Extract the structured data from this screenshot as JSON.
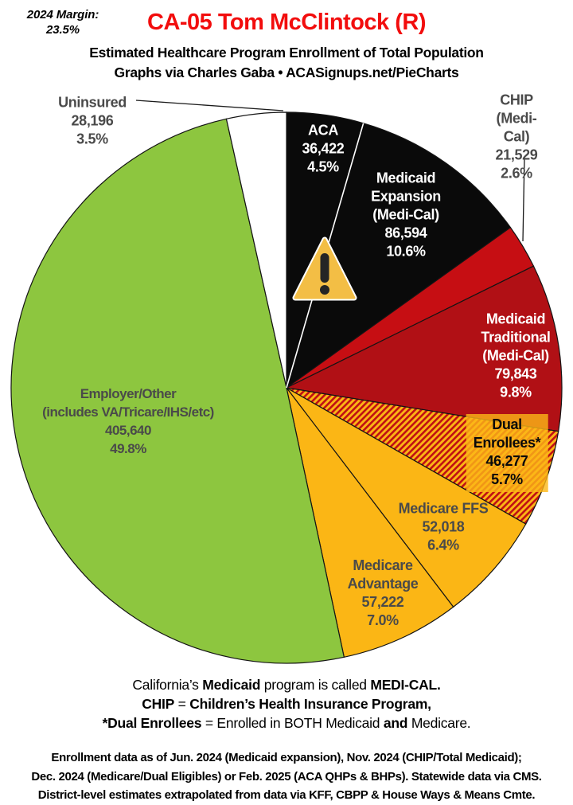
{
  "header": {
    "margin_note": "2024 Margin:\n23.5%",
    "title": "CA-05 Tom McClintock (R)",
    "title_color": "#f20d0d",
    "subtitle": "Estimated Healthcare Program Enrollment of Total Population",
    "byline": "Graphs via Charles Gaba  •  ACASignups.net/PieCharts"
  },
  "chart_data": {
    "type": "pie",
    "title": "Estimated Healthcare Program Enrollment of Total Population — CA-05",
    "start_angle_deg": 0,
    "direction": "clockwise",
    "legend_position": "labels-on-slices",
    "annotation_icon": "warning-triangle",
    "hatch_colors": {
      "base": "#fbb615",
      "stripe": "#c00f14"
    },
    "slices": [
      {
        "id": "aca",
        "name": "ACA",
        "value": 36422,
        "value_display": "36,422",
        "pct": 4.5,
        "pct_display": "4.5%",
        "color": "#0a0a0a",
        "hatch": false,
        "label_color": "#ffffff",
        "label_lines": [
          "ACA",
          "36,422",
          "4.5%"
        ]
      },
      {
        "id": "medicaid_expansion",
        "name": "Medicaid Expansion (Medi-Cal)",
        "value": 86594,
        "value_display": "86,594",
        "pct": 10.6,
        "pct_display": "10.6%",
        "color": "#0a0a0a",
        "hatch": false,
        "label_color": "#ffffff",
        "label_lines": [
          "Medicaid",
          "Expansion",
          "(Medi-Cal)",
          "86,594",
          "10.6%"
        ]
      },
      {
        "id": "chip",
        "name": "CHIP (Medi-Cal)",
        "value": 21529,
        "value_display": "21,529",
        "pct": 2.6,
        "pct_display": "2.6%",
        "color": "#c60e13",
        "hatch": false,
        "label_color": "#4a4a4a",
        "label_lines": [
          "CHIP (Medi-Cal)",
          "21,529 2.6%"
        ]
      },
      {
        "id": "medicaid_traditional",
        "name": "Medicaid Traditional (Medi-Cal)",
        "value": 79843,
        "value_display": "79,843",
        "pct": 9.8,
        "pct_display": "9.8%",
        "color": "#b11015",
        "hatch": false,
        "label_color": "#ffffff",
        "label_lines": [
          "Medicaid",
          "Traditional",
          "(Medi-Cal)",
          "79,843",
          "9.8%"
        ]
      },
      {
        "id": "dual_enrollees",
        "name": "Dual Enrollees*",
        "value": 46277,
        "value_display": "46,277",
        "pct": 5.7,
        "pct_display": "5.7%",
        "color": "#fbb615",
        "hatch": true,
        "label_color": "#0a0a0a",
        "label_lines": [
          "Dual Enrollees*",
          "46,277 5.7%"
        ]
      },
      {
        "id": "medicare_ffs",
        "name": "Medicare FFS",
        "value": 52018,
        "value_display": "52,018",
        "pct": 6.4,
        "pct_display": "6.4%",
        "color": "#fbb615",
        "hatch": false,
        "label_color": "#4a4a4a",
        "label_lines": [
          "Medicare FFS",
          "52,018",
          "6.4%"
        ]
      },
      {
        "id": "medicare_advantage",
        "name": "Medicare Advantage",
        "value": 57222,
        "value_display": "57,222",
        "pct": 7.0,
        "pct_display": "7.0%",
        "color": "#fbb615",
        "hatch": false,
        "label_color": "#4a4a4a",
        "label_lines": [
          "Medicare",
          "Advantage",
          "57,222",
          "7.0%"
        ]
      },
      {
        "id": "employer_other",
        "name": "Employer/Other (includes VA/Tricare/IHS/etc)",
        "value": 405640,
        "value_display": "405,640",
        "pct": 49.8,
        "pct_display": "49.8%",
        "color": "#8dc63f",
        "hatch": false,
        "label_color": "#4a4a4a",
        "label_lines": [
          "Employer/Other",
          "(includes VA/Tricare/IHS/etc)",
          "405,640",
          "49.8%"
        ]
      },
      {
        "id": "uninsured",
        "name": "Uninsured",
        "value": 28196,
        "value_display": "28,196",
        "pct": 3.5,
        "pct_display": "3.5%",
        "color": "#ffffff",
        "hatch": false,
        "label_color": "#4a4a4a",
        "label_lines": [
          "Uninsured",
          "28,196",
          "3.5%"
        ]
      }
    ]
  },
  "notes": {
    "lines": [
      {
        "segments": [
          {
            "text": "California’s ",
            "bold": false
          },
          {
            "text": "Medicaid",
            "bold": true
          },
          {
            "text": " program is called ",
            "bold": false
          },
          {
            "text": "MEDI-CAL.",
            "bold": true
          }
        ]
      },
      {
        "segments": [
          {
            "text": "CHIP",
            "bold": true
          },
          {
            "text": " = ",
            "bold": false
          },
          {
            "text": "Children’s Health Insurance Program,",
            "bold": true
          }
        ]
      },
      {
        "segments": [
          {
            "text": "*Dual Enrollees",
            "bold": true
          },
          {
            "text": " = Enrolled in BOTH Medicaid ",
            "bold": false
          },
          {
            "text": "and",
            "bold": true
          },
          {
            "text": " Medicare.",
            "bold": false
          }
        ]
      }
    ]
  },
  "footer": {
    "lines": [
      "Enrollment data as of Jun. 2024 (Medicaid expansion), Nov. 2024 (CHIP/Total Medicaid);",
      "Dec. 2024 (Medicare/Dual Eligibles) or Feb. 2025 (ACA QHPs & BHPs). Statewide data via CMS.",
      "District-level estimates extrapolated from data via KFF, CBPP & House Ways & Means Cmte."
    ]
  }
}
